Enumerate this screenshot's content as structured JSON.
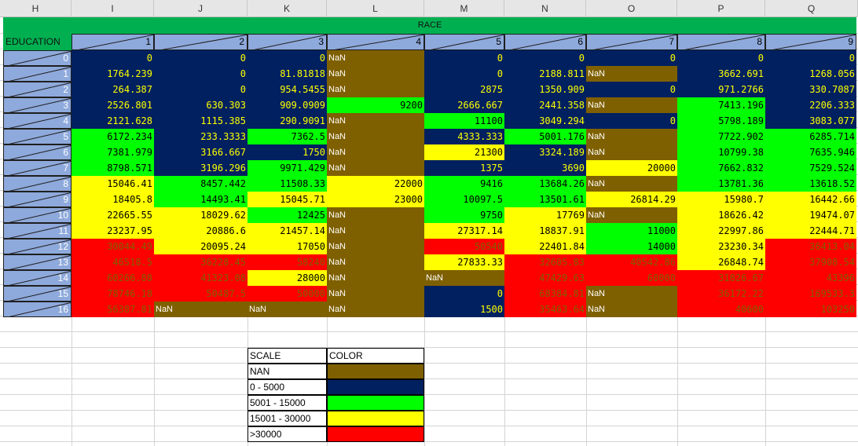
{
  "columns": [
    "H",
    "I",
    "J",
    "K",
    "L",
    "M",
    "N",
    "O",
    "P",
    "Q"
  ],
  "race_header": "RACE",
  "education_header": "EDUCATION",
  "race_values": [
    "1",
    "2",
    "3",
    "4",
    "5",
    "6",
    "7",
    "8",
    "9"
  ],
  "education_rows": [
    "0",
    "1",
    "2",
    "3",
    "4",
    "5",
    "6",
    "7",
    "8",
    "9",
    "10",
    "11",
    "12",
    "13",
    "14",
    "15",
    "16"
  ],
  "cells": [
    [
      "0",
      "0",
      "0",
      "NaN",
      "0",
      "0",
      "0",
      "0",
      "0"
    ],
    [
      "1764.239",
      "0",
      "81.81818",
      "NaN",
      "0",
      "2188.811",
      "NaN",
      "3662.691",
      "1268.056"
    ],
    [
      "264.387",
      "0",
      "954.5455",
      "NaN",
      "2875",
      "1350.909",
      "0",
      "971.2766",
      "330.7087"
    ],
    [
      "2526.801",
      "630.303",
      "909.0909",
      "9200",
      "2666.667",
      "2441.358",
      "NaN",
      "7413.196",
      "2206.333"
    ],
    [
      "2121.628",
      "1115.385",
      "290.9091",
      "NaN",
      "11100",
      "3049.294",
      "0",
      "5798.189",
      "3083.077"
    ],
    [
      "6172.234",
      "233.3333",
      "7362.5",
      "NaN",
      "4333.333",
      "5001.176",
      "NaN",
      "7722.902",
      "6285.714"
    ],
    [
      "7381.979",
      "3166.667",
      "1750",
      "NaN",
      "21300",
      "3324.189",
      "NaN",
      "10799.38",
      "7635.946"
    ],
    [
      "8798.571",
      "3196.296",
      "9971.429",
      "NaN",
      "1375",
      "3690",
      "20000",
      "7662.832",
      "7529.524"
    ],
    [
      "15046.41",
      "8457.442",
      "11508.33",
      "22000",
      "9416",
      "13684.26",
      "NaN",
      "13781.36",
      "13618.52"
    ],
    [
      "18405.8",
      "14493.41",
      "15045.71",
      "23000",
      "10097.5",
      "13501.61",
      "26814.29",
      "15980.7",
      "16442.66"
    ],
    [
      "22665.55",
      "18029.62",
      "12425",
      "NaN",
      "9750",
      "17769",
      "NaN",
      "18626.42",
      "19474.07"
    ],
    [
      "23237.95",
      "20886.6",
      "21457.14",
      "NaN",
      "27317.14",
      "18837.91",
      "11000",
      "22997.86",
      "22444.71"
    ],
    [
      "30044.49",
      "20095.24",
      "17050",
      "NaN",
      "50540",
      "22401.84",
      "14000",
      "23230.34",
      "36413.04"
    ],
    [
      "46518.5",
      "36228.45",
      "58240",
      "NaN",
      "27833.33",
      "32605.83",
      "40542.86",
      "26848.74",
      "37908.54"
    ],
    [
      "60266.88",
      "41323.08",
      "28000",
      "NaN",
      "NaN",
      "47429.63",
      "60000",
      "31826.67",
      "43396"
    ],
    [
      "78746.18",
      "50487.5",
      "50000",
      "NaN",
      "0",
      "68384.81",
      "NaN",
      "36172.22",
      "169533.3"
    ],
    [
      "56387.81",
      "NaN",
      "NaN",
      "NaN",
      "1500",
      "35463.64",
      "NaN",
      "40600",
      "103250"
    ]
  ],
  "colors": {
    "nan": "#7f6000",
    "low": "#002060",
    "mid": "#00ff00",
    "high": "#ffff00",
    "top": "#ff0000",
    "green_header": "#00b050",
    "blue_header": "#8ea9db"
  },
  "legend": {
    "scale_header": "SCALE",
    "color_header": "COLOR",
    "rows": [
      {
        "label": "NAN",
        "color": "#7f6000"
      },
      {
        "label": "0 - 5000",
        "color": "#002060"
      },
      {
        "label": "5001 - 15000",
        "color": "#00ff00"
      },
      {
        "label": "15001 - 30000",
        "color": "#ffff00"
      },
      {
        "label": ">30000",
        "color": "#ff0000"
      }
    ]
  }
}
